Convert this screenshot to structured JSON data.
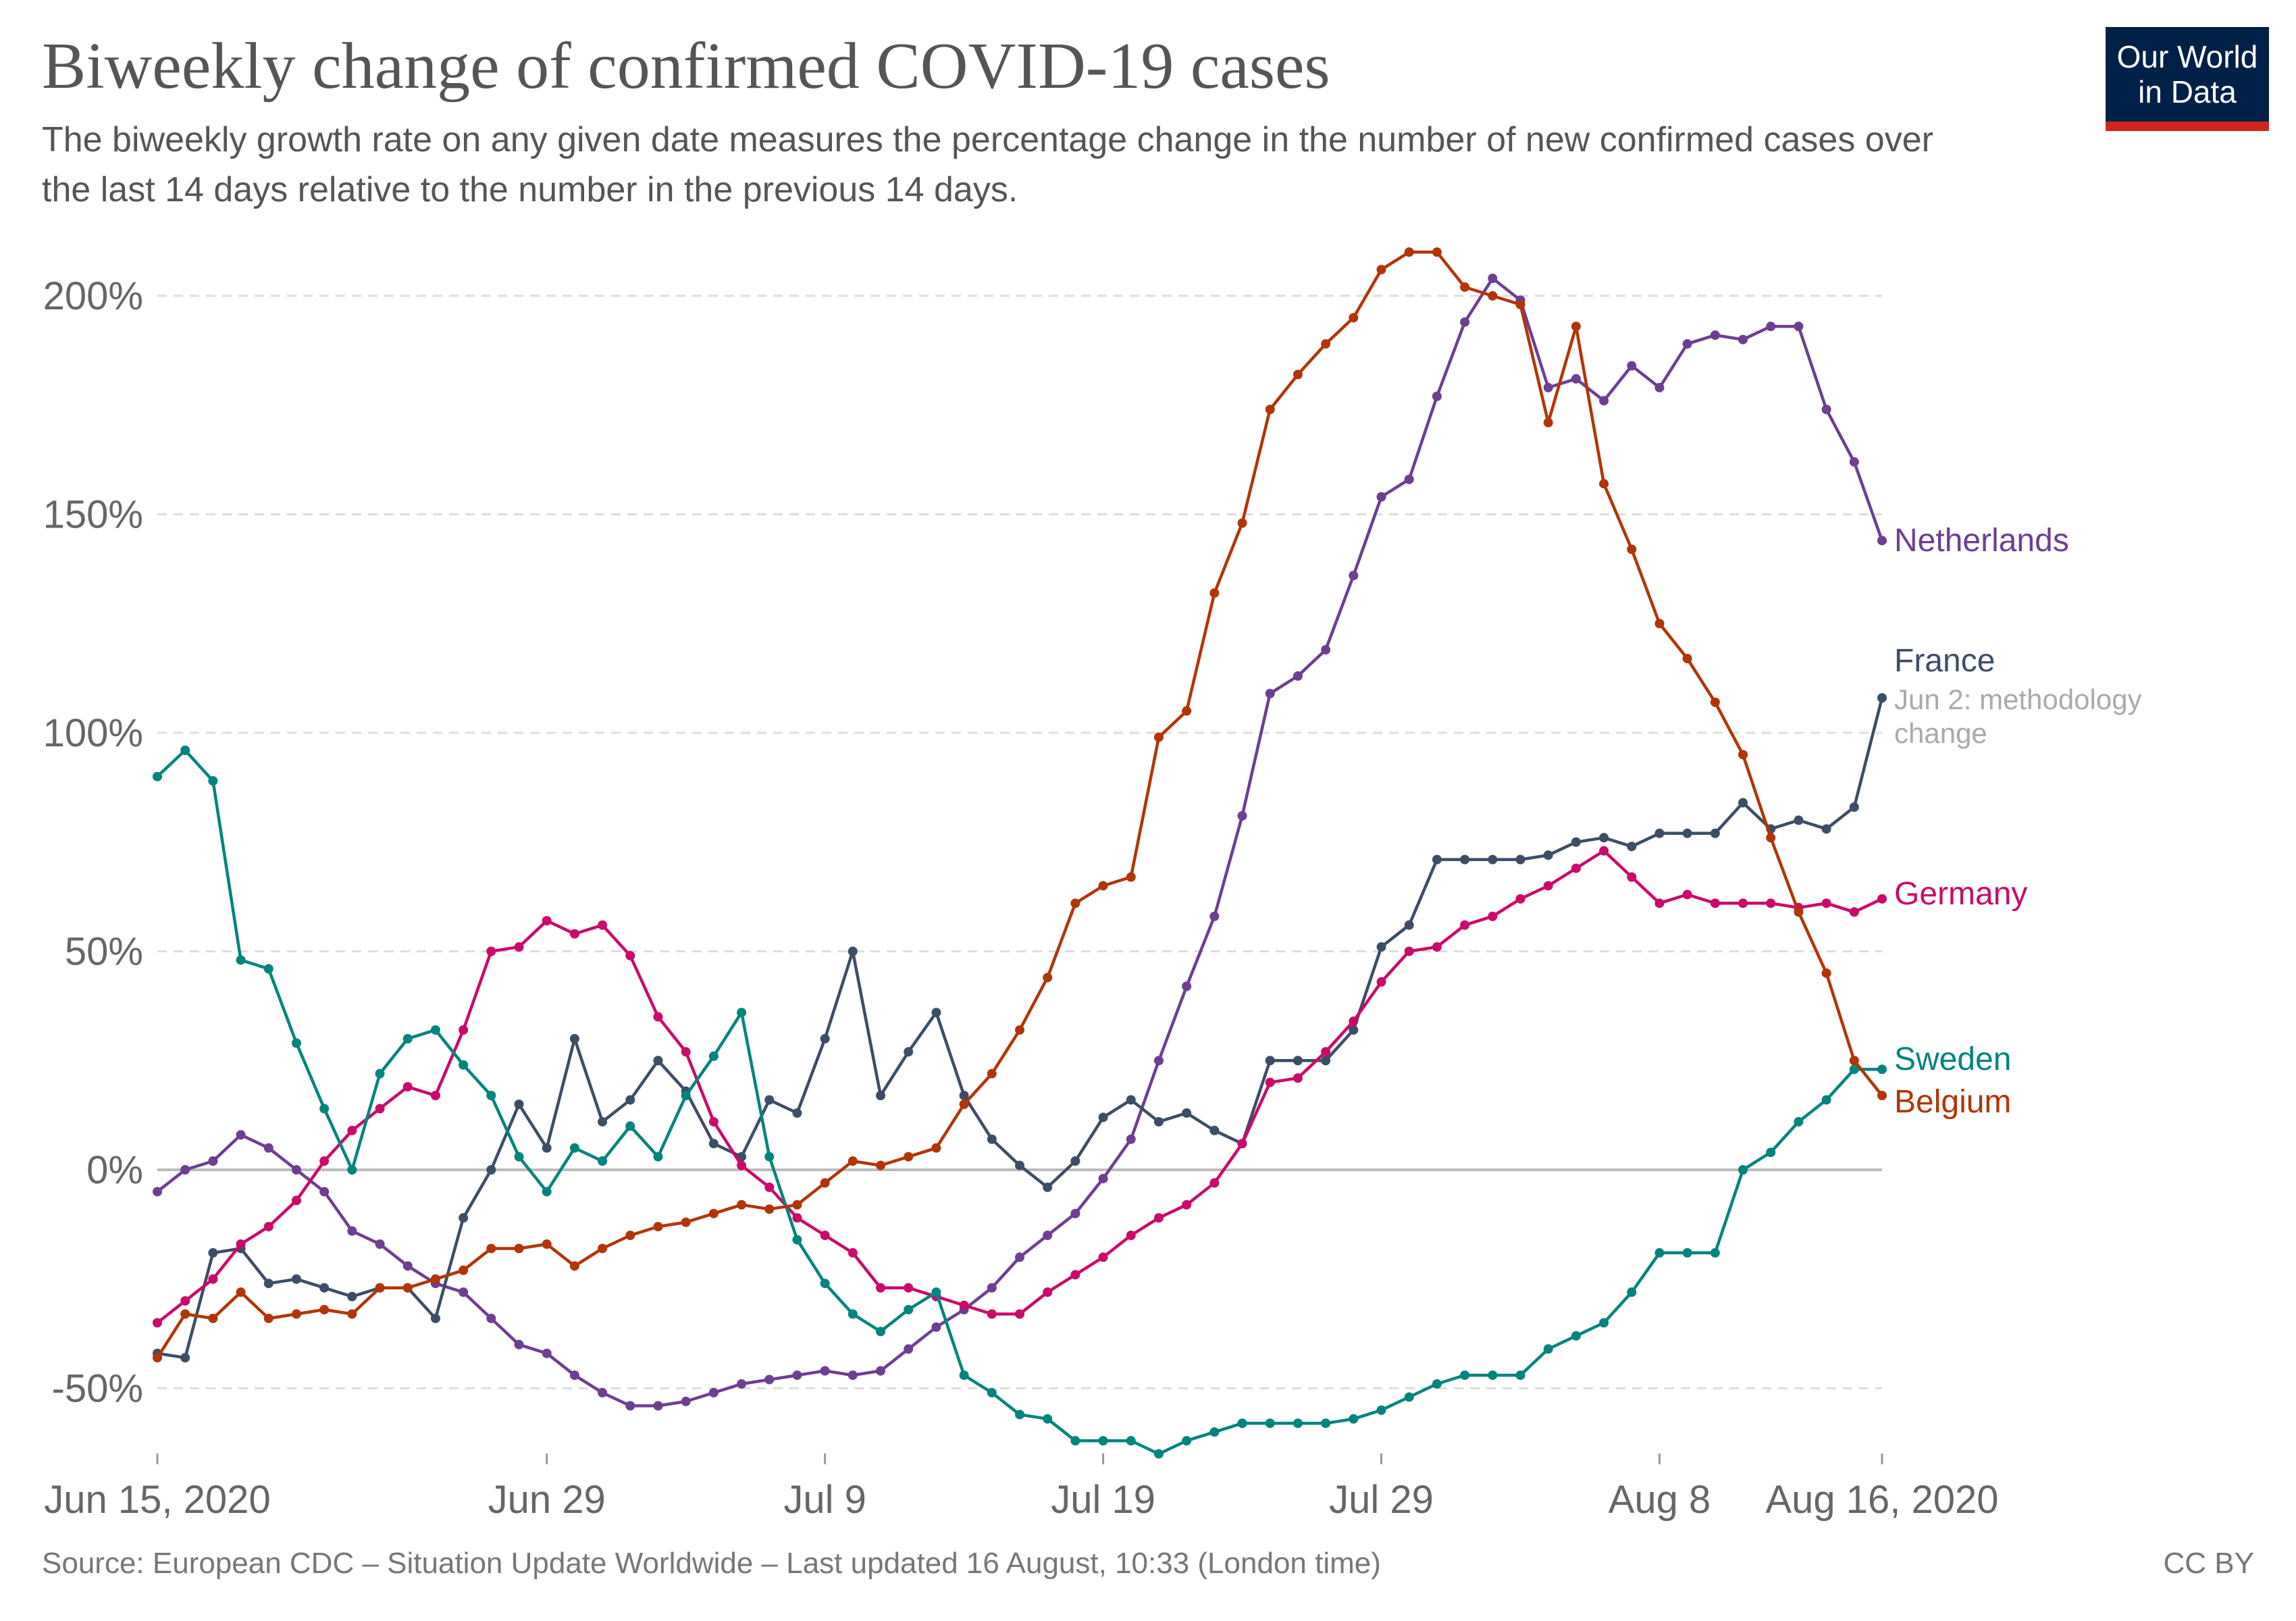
{
  "header": {
    "title": "Biweekly change of confirmed COVID-19 cases",
    "subtitle": "The biweekly growth rate on any given date measures the percentage change in the number of new confirmed cases over the last 14 days relative to the number in the previous 14 days."
  },
  "logo": {
    "line1": "Our World",
    "line2": "in Data"
  },
  "footer": {
    "source": "Source: European CDC – Situation Update Worldwide – Last updated 16 August, 10:33 (London time)",
    "license": "CC BY"
  },
  "chart_data": {
    "type": "line",
    "title": "Biweekly change of confirmed COVID-19 cases",
    "xlabel": "",
    "ylabel": "",
    "x_start": "Jun 15, 2020",
    "x_end": "Aug 16, 2020",
    "xlim": [
      0,
      62
    ],
    "ylim": [
      -65,
      210
    ],
    "y_ticks": [
      {
        "value": 200,
        "label": "200%"
      },
      {
        "value": 150,
        "label": "150%"
      },
      {
        "value": 100,
        "label": "100%"
      },
      {
        "value": 50,
        "label": "50%"
      },
      {
        "value": 0,
        "label": "0%"
      },
      {
        "value": -50,
        "label": "-50%"
      }
    ],
    "x_ticks": [
      {
        "day": 0,
        "label": "Jun 15, 2020"
      },
      {
        "day": 14,
        "label": "Jun 29"
      },
      {
        "day": 24,
        "label": "Jul 9"
      },
      {
        "day": 34,
        "label": "Jul 19"
      },
      {
        "day": 44,
        "label": "Jul 29"
      },
      {
        "day": 54,
        "label": "Aug 8"
      },
      {
        "day": 62,
        "label": "Aug 16, 2020"
      }
    ],
    "grid": true,
    "legend": "right, labels at line ends",
    "series": [
      {
        "name": "Netherlands",
        "color": "#6d3e91",
        "values": [
          -5,
          0,
          2,
          8,
          5,
          0,
          -5,
          -14,
          -17,
          -22,
          -26,
          -28,
          -34,
          -40,
          -42,
          -47,
          -51,
          -54,
          -54,
          -53,
          -51,
          -49,
          -48,
          -47,
          -46,
          -47,
          -46,
          -41,
          -36,
          -32,
          -27,
          -20,
          -15,
          -10,
          -2,
          7,
          25,
          42,
          58,
          81,
          109,
          113,
          119,
          136,
          154,
          158,
          177,
          194,
          204,
          199,
          179,
          181,
          176,
          184,
          179,
          189,
          191,
          190,
          193,
          193,
          174,
          162,
          144
        ]
      },
      {
        "name": "France",
        "color": "#3c4e66",
        "note": "Jun 2: methodology change",
        "values": [
          -42,
          -43,
          -19,
          -18,
          -26,
          -25,
          -27,
          -29,
          -27,
          -27,
          -34,
          -11,
          0,
          15,
          5,
          30,
          11,
          16,
          25,
          18,
          6,
          3,
          16,
          13,
          30,
          50,
          17,
          27,
          36,
          17,
          7,
          1,
          -4,
          2,
          12,
          16,
          11,
          13,
          9,
          6,
          25,
          25,
          25,
          32,
          51,
          56,
          71,
          71,
          71,
          71,
          72,
          75,
          76,
          74,
          77,
          77,
          77,
          84,
          78,
          80,
          78,
          83,
          108
        ]
      },
      {
        "name": "Germany",
        "color": "#ca0a6a",
        "values": [
          -35,
          -30,
          -25,
          -17,
          -13,
          -7,
          2,
          9,
          14,
          19,
          17,
          32,
          50,
          51,
          57,
          54,
          56,
          49,
          35,
          27,
          11,
          1,
          -4,
          -11,
          -15,
          -19,
          -27,
          -27,
          -29,
          -31,
          -33,
          -33,
          -28,
          -24,
          -20,
          -15,
          -11,
          -8,
          -3,
          6,
          20,
          21,
          27,
          34,
          43,
          50,
          51,
          56,
          58,
          62,
          65,
          69,
          73,
          67,
          61,
          63,
          61,
          61,
          61,
          60,
          61,
          59,
          62
        ]
      },
      {
        "name": "Sweden",
        "color": "#00847e",
        "values": [
          90,
          96,
          89,
          48,
          46,
          29,
          14,
          0,
          22,
          30,
          32,
          24,
          17,
          3,
          -5,
          5,
          2,
          10,
          3,
          17,
          26,
          36,
          3,
          -16,
          -26,
          -33,
          -37,
          -32,
          -28,
          -47,
          -51,
          -56,
          -57,
          -62,
          -62,
          -62,
          -65,
          -62,
          -60,
          -58,
          -58,
          -58,
          -58,
          -57,
          -55,
          -52,
          -49,
          -47,
          -47,
          -47,
          -41,
          -38,
          -35,
          -28,
          -19,
          -19,
          -19,
          0,
          4,
          11,
          16,
          23,
          23
        ]
      },
      {
        "name": "Belgium",
        "color": "#b13507",
        "values": [
          -43,
          -33,
          -34,
          -28,
          -34,
          -33,
          -32,
          -33,
          -27,
          -27,
          -25,
          -23,
          -18,
          -18,
          -17,
          -22,
          -18,
          -15,
          -13,
          -12,
          -10,
          -8,
          -9,
          -8,
          -3,
          2,
          1,
          3,
          5,
          15,
          22,
          32,
          44,
          61,
          65,
          67,
          99,
          105,
          132,
          148,
          174,
          182,
          189,
          195,
          206,
          210,
          210,
          202,
          200,
          198,
          171,
          193,
          157,
          142,
          125,
          117,
          107,
          95,
          76,
          59,
          45,
          25,
          17
        ]
      }
    ]
  }
}
